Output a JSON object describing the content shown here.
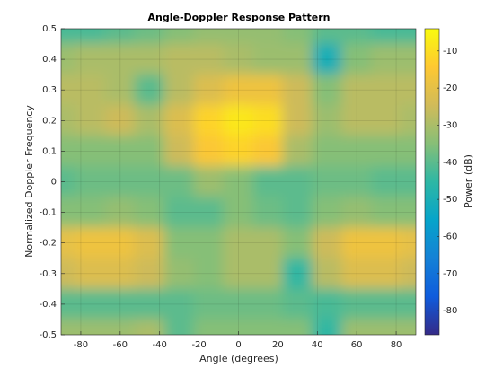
{
  "chart_data": {
    "type": "heatmap",
    "title": "Angle-Doppler Response Pattern",
    "x_label": "Angle (degrees)",
    "y_label": "Normalized Doppler Frequency",
    "colorbar_label": "Power (dB)",
    "colormap": "parula",
    "x": [
      -90,
      -75,
      -60,
      -45,
      -30,
      -15,
      0,
      15,
      30,
      45,
      60,
      75,
      90
    ],
    "y": [
      0.5,
      0.4,
      0.3,
      0.2,
      0.1,
      0,
      -0.1,
      -0.2,
      -0.3,
      -0.4,
      -0.5
    ],
    "z": [
      [
        -42,
        -42,
        -40,
        -38,
        -35,
        -33,
        -33,
        -33,
        -35,
        -40,
        -40,
        -42,
        -42
      ],
      [
        -32,
        -30,
        -30,
        -30,
        -28,
        -28,
        -30,
        -32,
        -32,
        -50,
        -35,
        -32,
        -32
      ],
      [
        -28,
        -28,
        -30,
        -40,
        -28,
        -22,
        -18,
        -18,
        -25,
        -35,
        -28,
        -28,
        -28
      ],
      [
        -30,
        -28,
        -25,
        -30,
        -22,
        -12,
        -8,
        -10,
        -25,
        -32,
        -28,
        -28,
        -30
      ],
      [
        -35,
        -35,
        -35,
        -35,
        -25,
        -15,
        -12,
        -15,
        -30,
        -35,
        -35,
        -35,
        -35
      ],
      [
        -40,
        -38,
        -38,
        -38,
        -38,
        -32,
        -35,
        -40,
        -40,
        -38,
        -38,
        -40,
        -40
      ],
      [
        -35,
        -35,
        -33,
        -35,
        -40,
        -40,
        -35,
        -38,
        -40,
        -35,
        -33,
        -35,
        -35
      ],
      [
        -20,
        -18,
        -18,
        -22,
        -35,
        -35,
        -30,
        -30,
        -35,
        -25,
        -18,
        -18,
        -20
      ],
      [
        -25,
        -22,
        -22,
        -25,
        -33,
        -35,
        -30,
        -30,
        -45,
        -28,
        -22,
        -22,
        -25
      ],
      [
        -40,
        -40,
        -40,
        -40,
        -40,
        -38,
        -38,
        -38,
        -40,
        -42,
        -40,
        -40,
        -40
      ],
      [
        -32,
        -32,
        -32,
        -30,
        -40,
        -35,
        -35,
        -35,
        -35,
        -45,
        -32,
        -32,
        -32
      ]
    ],
    "xlim": [
      -90,
      90
    ],
    "ylim": [
      -0.5,
      0.5
    ],
    "clim": [
      -86.5,
      -4
    ],
    "xticks": [
      -80,
      -60,
      -40,
      -20,
      0,
      20,
      40,
      60,
      80
    ],
    "yticks": [
      -0.5,
      -0.4,
      -0.3,
      -0.2,
      -0.1,
      0,
      0.1,
      0.2,
      0.3,
      0.4,
      0.5
    ],
    "cticks": [
      -80,
      -70,
      -60,
      -50,
      -40,
      -30,
      -20,
      -10
    ],
    "grid": true
  }
}
